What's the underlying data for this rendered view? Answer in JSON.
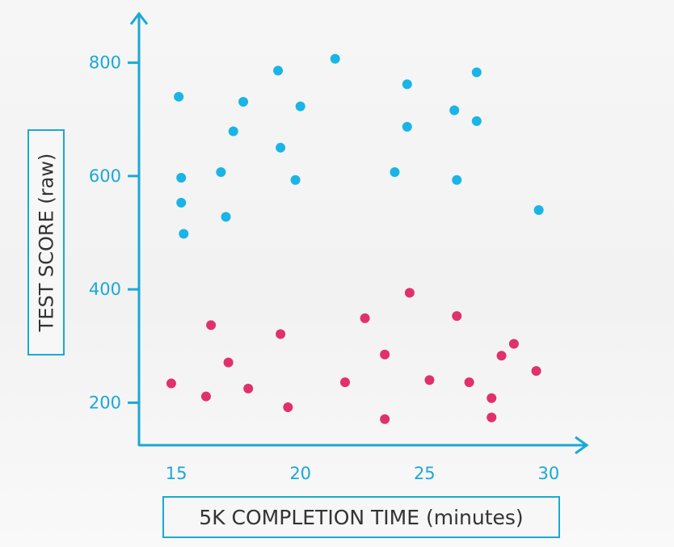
{
  "chart_data": {
    "type": "scatter",
    "xlabel": "5K COMPLETION TIME (minutes)",
    "ylabel": "TEST SCORE (raw)",
    "xlim": [
      13.5,
      31.5
    ],
    "ylim": [
      125,
      885
    ],
    "x_ticks": [
      15,
      20,
      25,
      30
    ],
    "y_ticks": [
      200,
      400,
      600,
      800
    ],
    "grid": false,
    "series": [
      {
        "color": "#1ab4e6",
        "points": [
          [
            15.1,
            740
          ],
          [
            15.2,
            597
          ],
          [
            15.2,
            553
          ],
          [
            15.3,
            498
          ],
          [
            16.8,
            607
          ],
          [
            17.0,
            528
          ],
          [
            17.3,
            679
          ],
          [
            17.7,
            731
          ],
          [
            19.1,
            786
          ],
          [
            19.2,
            650
          ],
          [
            19.8,
            593
          ],
          [
            20.0,
            723
          ],
          [
            21.4,
            807
          ],
          [
            23.8,
            607
          ],
          [
            24.3,
            687
          ],
          [
            24.3,
            762
          ],
          [
            26.2,
            716
          ],
          [
            26.3,
            593
          ],
          [
            27.1,
            783
          ],
          [
            27.1,
            697
          ],
          [
            29.6,
            540
          ]
        ]
      },
      {
        "color": "#e0306e",
        "points": [
          [
            14.8,
            234
          ],
          [
            16.2,
            211
          ],
          [
            16.4,
            337
          ],
          [
            17.1,
            271
          ],
          [
            17.9,
            225
          ],
          [
            19.2,
            321
          ],
          [
            19.5,
            192
          ],
          [
            21.8,
            236
          ],
          [
            22.6,
            349
          ],
          [
            23.4,
            285
          ],
          [
            23.4,
            171
          ],
          [
            24.4,
            394
          ],
          [
            25.2,
            240
          ],
          [
            26.3,
            353
          ],
          [
            26.8,
            236
          ],
          [
            27.7,
            208
          ],
          [
            27.7,
            174
          ],
          [
            28.1,
            283
          ],
          [
            28.6,
            304
          ],
          [
            29.5,
            256
          ]
        ]
      }
    ]
  }
}
